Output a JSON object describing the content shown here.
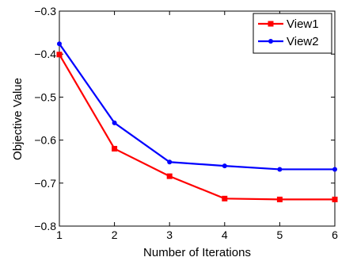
{
  "chart_data": {
    "type": "line",
    "title": "",
    "xlabel": "Number of Iterations",
    "ylabel": "Objective Value",
    "x": [
      1,
      2,
      3,
      4,
      5,
      6
    ],
    "xlim": [
      1,
      6
    ],
    "ylim": [
      -0.8,
      -0.3
    ],
    "xticks": [
      "1",
      "2",
      "3",
      "4",
      "5",
      "6"
    ],
    "yticks": [
      "−0.8",
      "−0.7",
      "−0.6",
      "−0.5",
      "−0.4",
      "−0.3"
    ],
    "grid": false,
    "legend_position": "top-right",
    "series": [
      {
        "name": "View1",
        "color": "#ff0000",
        "marker": "square",
        "values": [
          -0.401,
          -0.62,
          -0.684,
          -0.736,
          -0.738,
          -0.738
        ]
      },
      {
        "name": "View2",
        "color": "#0000ff",
        "marker": "circle",
        "values": [
          -0.376,
          -0.56,
          -0.651,
          -0.66,
          -0.668,
          -0.668
        ]
      }
    ]
  }
}
